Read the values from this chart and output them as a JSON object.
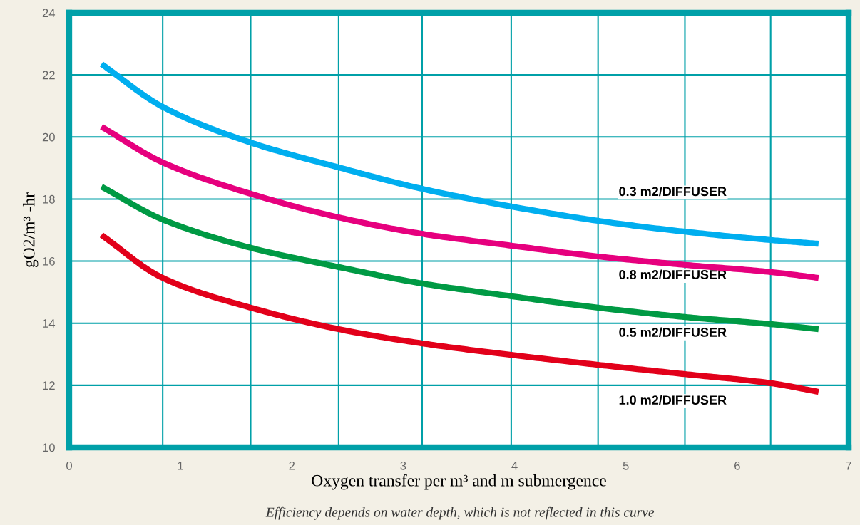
{
  "chart_data": {
    "type": "line",
    "xlabel": "Oxygen transfer per m³ and m submergence",
    "ylabel": "gO2/m³ -hr",
    "xlim": [
      0,
      7
    ],
    "ylim": [
      10,
      24
    ],
    "xticks": [
      0,
      1,
      2,
      3,
      4,
      5,
      6,
      7
    ],
    "yticks": [
      10,
      12,
      14,
      16,
      18,
      20,
      22,
      24
    ],
    "grid": "y",
    "marker": "none",
    "line_style": "solid",
    "x": [
      0.29,
      0.84,
      1.63,
      2.42,
      3.17,
      3.97,
      4.75,
      5.53,
      6.3,
      6.73
    ],
    "series": [
      {
        "name": "0.3 m2/DIFFUSER",
        "color": "#00aeef",
        "values": [
          22.35,
          20.97,
          19.82,
          19.02,
          18.33,
          17.76,
          17.3,
          16.95,
          16.68,
          16.56
        ]
      },
      {
        "name": "0.8 m2/DIFFUSER",
        "color": "#e6007e",
        "values": [
          20.33,
          19.18,
          18.17,
          17.41,
          16.88,
          16.5,
          16.15,
          15.88,
          15.65,
          15.46
        ]
      },
      {
        "name": "0.5 m2/DIFFUSER",
        "color": "#009a44",
        "values": [
          18.4,
          17.34,
          16.43,
          15.81,
          15.28,
          14.87,
          14.5,
          14.2,
          13.97,
          13.81
        ]
      },
      {
        "name": "1.0 m2/DIFFUSER",
        "color": "#e2001a",
        "values": [
          16.84,
          15.46,
          14.5,
          13.81,
          13.35,
          12.98,
          12.66,
          12.36,
          12.07,
          11.79
        ]
      }
    ],
    "ref_lines": [
      {
        "axis": "x",
        "value": 0.84,
        "color": "#00a0a8"
      },
      {
        "axis": "x",
        "value": 1.63,
        "color": "#00a0a8"
      },
      {
        "axis": "x",
        "value": 2.42,
        "color": "#00a0a8"
      },
      {
        "axis": "x",
        "value": 3.17,
        "color": "#00a0a8"
      },
      {
        "axis": "x",
        "value": 3.97,
        "color": "#00a0a8"
      },
      {
        "axis": "x",
        "value": 4.75,
        "color": "#00a0a8"
      },
      {
        "axis": "x",
        "value": 5.53,
        "color": "#00a0a8"
      },
      {
        "axis": "x",
        "value": 6.3,
        "color": "#00a0a8"
      }
    ],
    "annotations": [
      "Efficiency depends on water depth, which is not reflected in this curve"
    ]
  }
}
